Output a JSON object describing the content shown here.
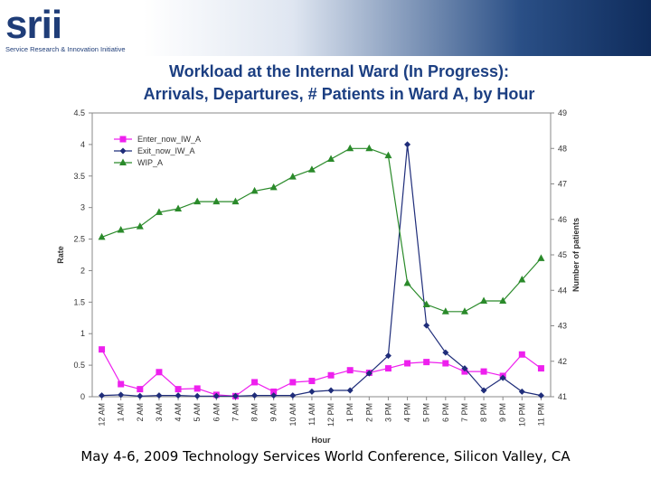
{
  "logo": {
    "mark": "srii",
    "tagline": "Service Research & Innovation Initiative"
  },
  "title_lines": [
    "Workload at the Internal Ward (In Progress):",
    "Arrivals, Departures, # Patients in Ward A, by Hour"
  ],
  "footer": "May 4-6, 2009 Technology Services World Conference,  Silicon Valley, CA",
  "colors": {
    "enter": "#ee20ee",
    "exit": "#1f2d7a",
    "wip": "#2a8a2a",
    "header_dark": "#0f2c5c"
  },
  "chart_data": {
    "type": "line",
    "xlabel": "Hour",
    "ylabel": "Rate",
    "y2label": "Number of patients",
    "categories": [
      "12 AM",
      "1 AM",
      "2 AM",
      "3 AM",
      "4 AM",
      "5 AM",
      "6 AM",
      "7 AM",
      "8 AM",
      "9 AM",
      "10 AM",
      "11 AM",
      "12 PM",
      "1 PM",
      "2 PM",
      "3 PM",
      "4 PM",
      "5 PM",
      "6 PM",
      "7 PM",
      "8 PM",
      "9 PM",
      "10 PM",
      "11 PM"
    ],
    "ylim": [
      0,
      4.5
    ],
    "yticks": [
      "0",
      "0.5",
      "1",
      "1.5",
      "2",
      "2.5",
      "3",
      "3.5",
      "4",
      "4.5"
    ],
    "y2lim": [
      41,
      49
    ],
    "y2ticks": [
      "41",
      "42",
      "43",
      "44",
      "45",
      "46",
      "47",
      "48",
      "49"
    ],
    "legend_position": "top-left",
    "series": [
      {
        "name": "Enter_now_IW_A",
        "axis": "left",
        "marker": "square",
        "color_key": "enter",
        "values": [
          0.75,
          0.2,
          0.12,
          0.39,
          0.12,
          0.13,
          0.03,
          0.01,
          0.23,
          0.08,
          0.23,
          0.25,
          0.34,
          0.42,
          0.38,
          0.45,
          0.53,
          0.55,
          0.53,
          0.4,
          0.4,
          0.33,
          0.67,
          0.45
        ]
      },
      {
        "name": "Exit_now_IW_A",
        "axis": "left",
        "marker": "diamond",
        "color_key": "exit",
        "values": [
          0.02,
          0.03,
          0.01,
          0.02,
          0.02,
          0.01,
          0.01,
          0.01,
          0.02,
          0.02,
          0.02,
          0.08,
          0.1,
          0.1,
          0.37,
          0.65,
          4.0,
          1.13,
          0.7,
          0.45,
          0.1,
          0.3,
          0.08,
          0.02
        ]
      },
      {
        "name": "WIP_A",
        "axis": "right",
        "marker": "triangle",
        "color_key": "wip",
        "values": [
          45.5,
          45.7,
          45.8,
          46.2,
          46.3,
          46.5,
          46.5,
          46.5,
          46.8,
          46.9,
          47.2,
          47.4,
          47.7,
          48.0,
          48.0,
          47.8,
          44.2,
          43.6,
          43.4,
          43.4,
          43.7,
          43.7,
          44.3,
          44.9
        ]
      }
    ]
  }
}
